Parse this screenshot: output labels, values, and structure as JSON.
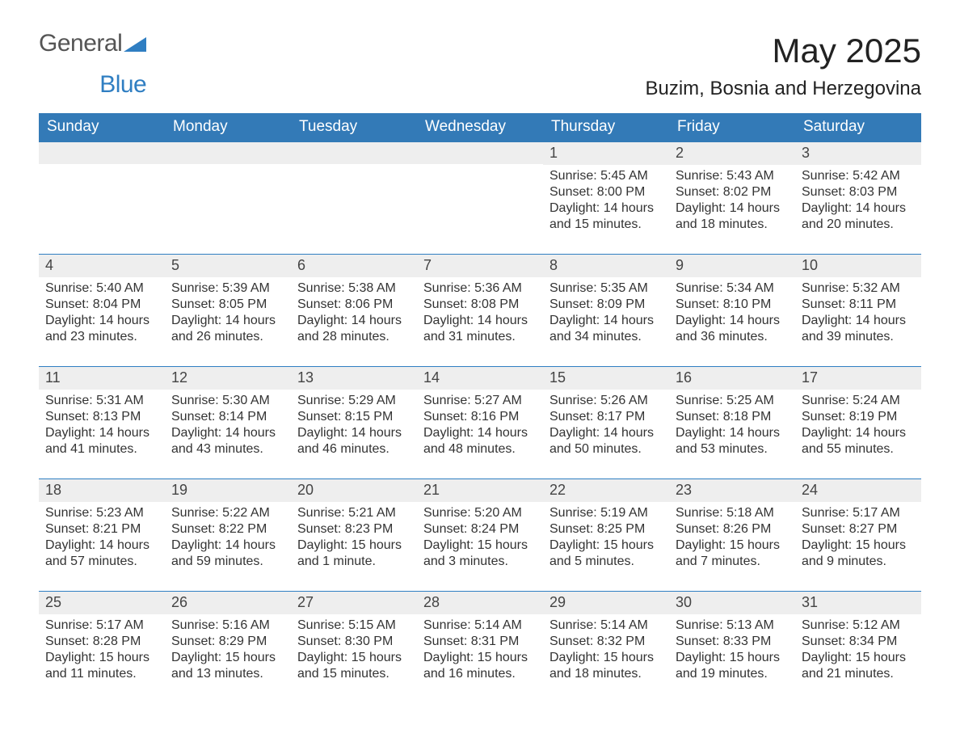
{
  "brand": {
    "name1": "General",
    "name2": "Blue",
    "color1": "#555555",
    "color2": "#2f7ec2",
    "logo_triangle_color": "#2f7ec2"
  },
  "title": "May 2025",
  "location": "Buzim, Bosnia and Herzegovina",
  "colors": {
    "header_bg": "#337ab7",
    "header_text": "#ffffff",
    "week_divider": "#2f7ec2",
    "daynum_bg": "#eeeeee",
    "body_text": "#333333",
    "page_bg": "#ffffff"
  },
  "typography": {
    "title_fontsize": 42,
    "location_fontsize": 24,
    "day_header_fontsize": 19,
    "daynum_fontsize": 18,
    "cell_fontsize": 16
  },
  "day_headers": [
    "Sunday",
    "Monday",
    "Tuesday",
    "Wednesday",
    "Thursday",
    "Friday",
    "Saturday"
  ],
  "labels": {
    "sunrise": "Sunrise:",
    "sunset": "Sunset:",
    "daylight": "Daylight:"
  },
  "weeks": [
    [
      {
        "day": "",
        "sunrise": "",
        "sunset": "",
        "daylight": ""
      },
      {
        "day": "",
        "sunrise": "",
        "sunset": "",
        "daylight": ""
      },
      {
        "day": "",
        "sunrise": "",
        "sunset": "",
        "daylight": ""
      },
      {
        "day": "",
        "sunrise": "",
        "sunset": "",
        "daylight": ""
      },
      {
        "day": "1",
        "sunrise": "5:45 AM",
        "sunset": "8:00 PM",
        "daylight": "14 hours and 15 minutes."
      },
      {
        "day": "2",
        "sunrise": "5:43 AM",
        "sunset": "8:02 PM",
        "daylight": "14 hours and 18 minutes."
      },
      {
        "day": "3",
        "sunrise": "5:42 AM",
        "sunset": "8:03 PM",
        "daylight": "14 hours and 20 minutes."
      }
    ],
    [
      {
        "day": "4",
        "sunrise": "5:40 AM",
        "sunset": "8:04 PM",
        "daylight": "14 hours and 23 minutes."
      },
      {
        "day": "5",
        "sunrise": "5:39 AM",
        "sunset": "8:05 PM",
        "daylight": "14 hours and 26 minutes."
      },
      {
        "day": "6",
        "sunrise": "5:38 AM",
        "sunset": "8:06 PM",
        "daylight": "14 hours and 28 minutes."
      },
      {
        "day": "7",
        "sunrise": "5:36 AM",
        "sunset": "8:08 PM",
        "daylight": "14 hours and 31 minutes."
      },
      {
        "day": "8",
        "sunrise": "5:35 AM",
        "sunset": "8:09 PM",
        "daylight": "14 hours and 34 minutes."
      },
      {
        "day": "9",
        "sunrise": "5:34 AM",
        "sunset": "8:10 PM",
        "daylight": "14 hours and 36 minutes."
      },
      {
        "day": "10",
        "sunrise": "5:32 AM",
        "sunset": "8:11 PM",
        "daylight": "14 hours and 39 minutes."
      }
    ],
    [
      {
        "day": "11",
        "sunrise": "5:31 AM",
        "sunset": "8:13 PM",
        "daylight": "14 hours and 41 minutes."
      },
      {
        "day": "12",
        "sunrise": "5:30 AM",
        "sunset": "8:14 PM",
        "daylight": "14 hours and 43 minutes."
      },
      {
        "day": "13",
        "sunrise": "5:29 AM",
        "sunset": "8:15 PM",
        "daylight": "14 hours and 46 minutes."
      },
      {
        "day": "14",
        "sunrise": "5:27 AM",
        "sunset": "8:16 PM",
        "daylight": "14 hours and 48 minutes."
      },
      {
        "day": "15",
        "sunrise": "5:26 AM",
        "sunset": "8:17 PM",
        "daylight": "14 hours and 50 minutes."
      },
      {
        "day": "16",
        "sunrise": "5:25 AM",
        "sunset": "8:18 PM",
        "daylight": "14 hours and 53 minutes."
      },
      {
        "day": "17",
        "sunrise": "5:24 AM",
        "sunset": "8:19 PM",
        "daylight": "14 hours and 55 minutes."
      }
    ],
    [
      {
        "day": "18",
        "sunrise": "5:23 AM",
        "sunset": "8:21 PM",
        "daylight": "14 hours and 57 minutes."
      },
      {
        "day": "19",
        "sunrise": "5:22 AM",
        "sunset": "8:22 PM",
        "daylight": "14 hours and 59 minutes."
      },
      {
        "day": "20",
        "sunrise": "5:21 AM",
        "sunset": "8:23 PM",
        "daylight": "15 hours and 1 minute."
      },
      {
        "day": "21",
        "sunrise": "5:20 AM",
        "sunset": "8:24 PM",
        "daylight": "15 hours and 3 minutes."
      },
      {
        "day": "22",
        "sunrise": "5:19 AM",
        "sunset": "8:25 PM",
        "daylight": "15 hours and 5 minutes."
      },
      {
        "day": "23",
        "sunrise": "5:18 AM",
        "sunset": "8:26 PM",
        "daylight": "15 hours and 7 minutes."
      },
      {
        "day": "24",
        "sunrise": "5:17 AM",
        "sunset": "8:27 PM",
        "daylight": "15 hours and 9 minutes."
      }
    ],
    [
      {
        "day": "25",
        "sunrise": "5:17 AM",
        "sunset": "8:28 PM",
        "daylight": "15 hours and 11 minutes."
      },
      {
        "day": "26",
        "sunrise": "5:16 AM",
        "sunset": "8:29 PM",
        "daylight": "15 hours and 13 minutes."
      },
      {
        "day": "27",
        "sunrise": "5:15 AM",
        "sunset": "8:30 PM",
        "daylight": "15 hours and 15 minutes."
      },
      {
        "day": "28",
        "sunrise": "5:14 AM",
        "sunset": "8:31 PM",
        "daylight": "15 hours and 16 minutes."
      },
      {
        "day": "29",
        "sunrise": "5:14 AM",
        "sunset": "8:32 PM",
        "daylight": "15 hours and 18 minutes."
      },
      {
        "day": "30",
        "sunrise": "5:13 AM",
        "sunset": "8:33 PM",
        "daylight": "15 hours and 19 minutes."
      },
      {
        "day": "31",
        "sunrise": "5:12 AM",
        "sunset": "8:34 PM",
        "daylight": "15 hours and 21 minutes."
      }
    ]
  ]
}
